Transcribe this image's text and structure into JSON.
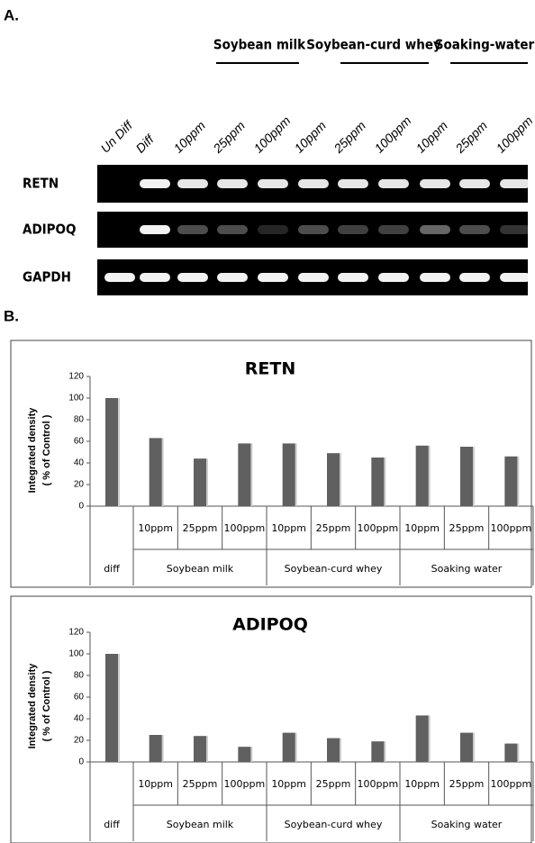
{
  "panel_a": {
    "label": "A.",
    "groups": [
      "Soybean milk",
      "Soybean-curd whey",
      "Soaking-water"
    ],
    "lanes": [
      "Un Diff",
      "Diff",
      "10ppm",
      "25ppm",
      "100ppm",
      "10ppm",
      "25ppm",
      "100ppm",
      "10ppm",
      "25ppm",
      "100ppm"
    ],
    "rows": [
      "RETN",
      "ADIPOQ",
      "GAPDH"
    ]
  },
  "panel_b_label": "B.",
  "chart_data": [
    {
      "type": "bar",
      "title": "RETN",
      "ylabel": "Integrated density",
      "ylabel2": "( % of Control )",
      "categories": [
        null,
        "10ppm",
        "25ppm",
        "100ppm",
        "10ppm",
        "25ppm",
        "100ppm",
        "10ppm",
        "25ppm",
        "100ppm"
      ],
      "groups": [
        "diff",
        "Soybean milk",
        "Soybean-curd whey",
        "Soaking water"
      ],
      "values": [
        100,
        63,
        44,
        58,
        58,
        49,
        45,
        56,
        55,
        46
      ],
      "color": "#606060",
      "ylim": [
        0,
        120
      ],
      "yticks": [
        0,
        20,
        40,
        60,
        80,
        100,
        120
      ],
      "grid": false
    },
    {
      "type": "bar",
      "title": "ADIPOQ",
      "ylabel": "Integrated density",
      "ylabel2": "( % of Control )",
      "categories": [
        null,
        "10ppm",
        "25ppm",
        "100ppm",
        "10ppm",
        "25ppm",
        "100ppm",
        "10ppm",
        "25ppm",
        "100ppm"
      ],
      "groups": [
        "diff",
        "Soybean milk",
        "Soybean-curd whey",
        "Soaking water"
      ],
      "values": [
        100,
        25,
        24,
        14,
        27,
        22,
        19,
        43,
        27,
        17
      ],
      "color": "#606060",
      "ylim": [
        0,
        120
      ],
      "yticks": [
        0,
        20,
        40,
        60,
        80,
        100,
        120
      ],
      "grid": false
    }
  ]
}
